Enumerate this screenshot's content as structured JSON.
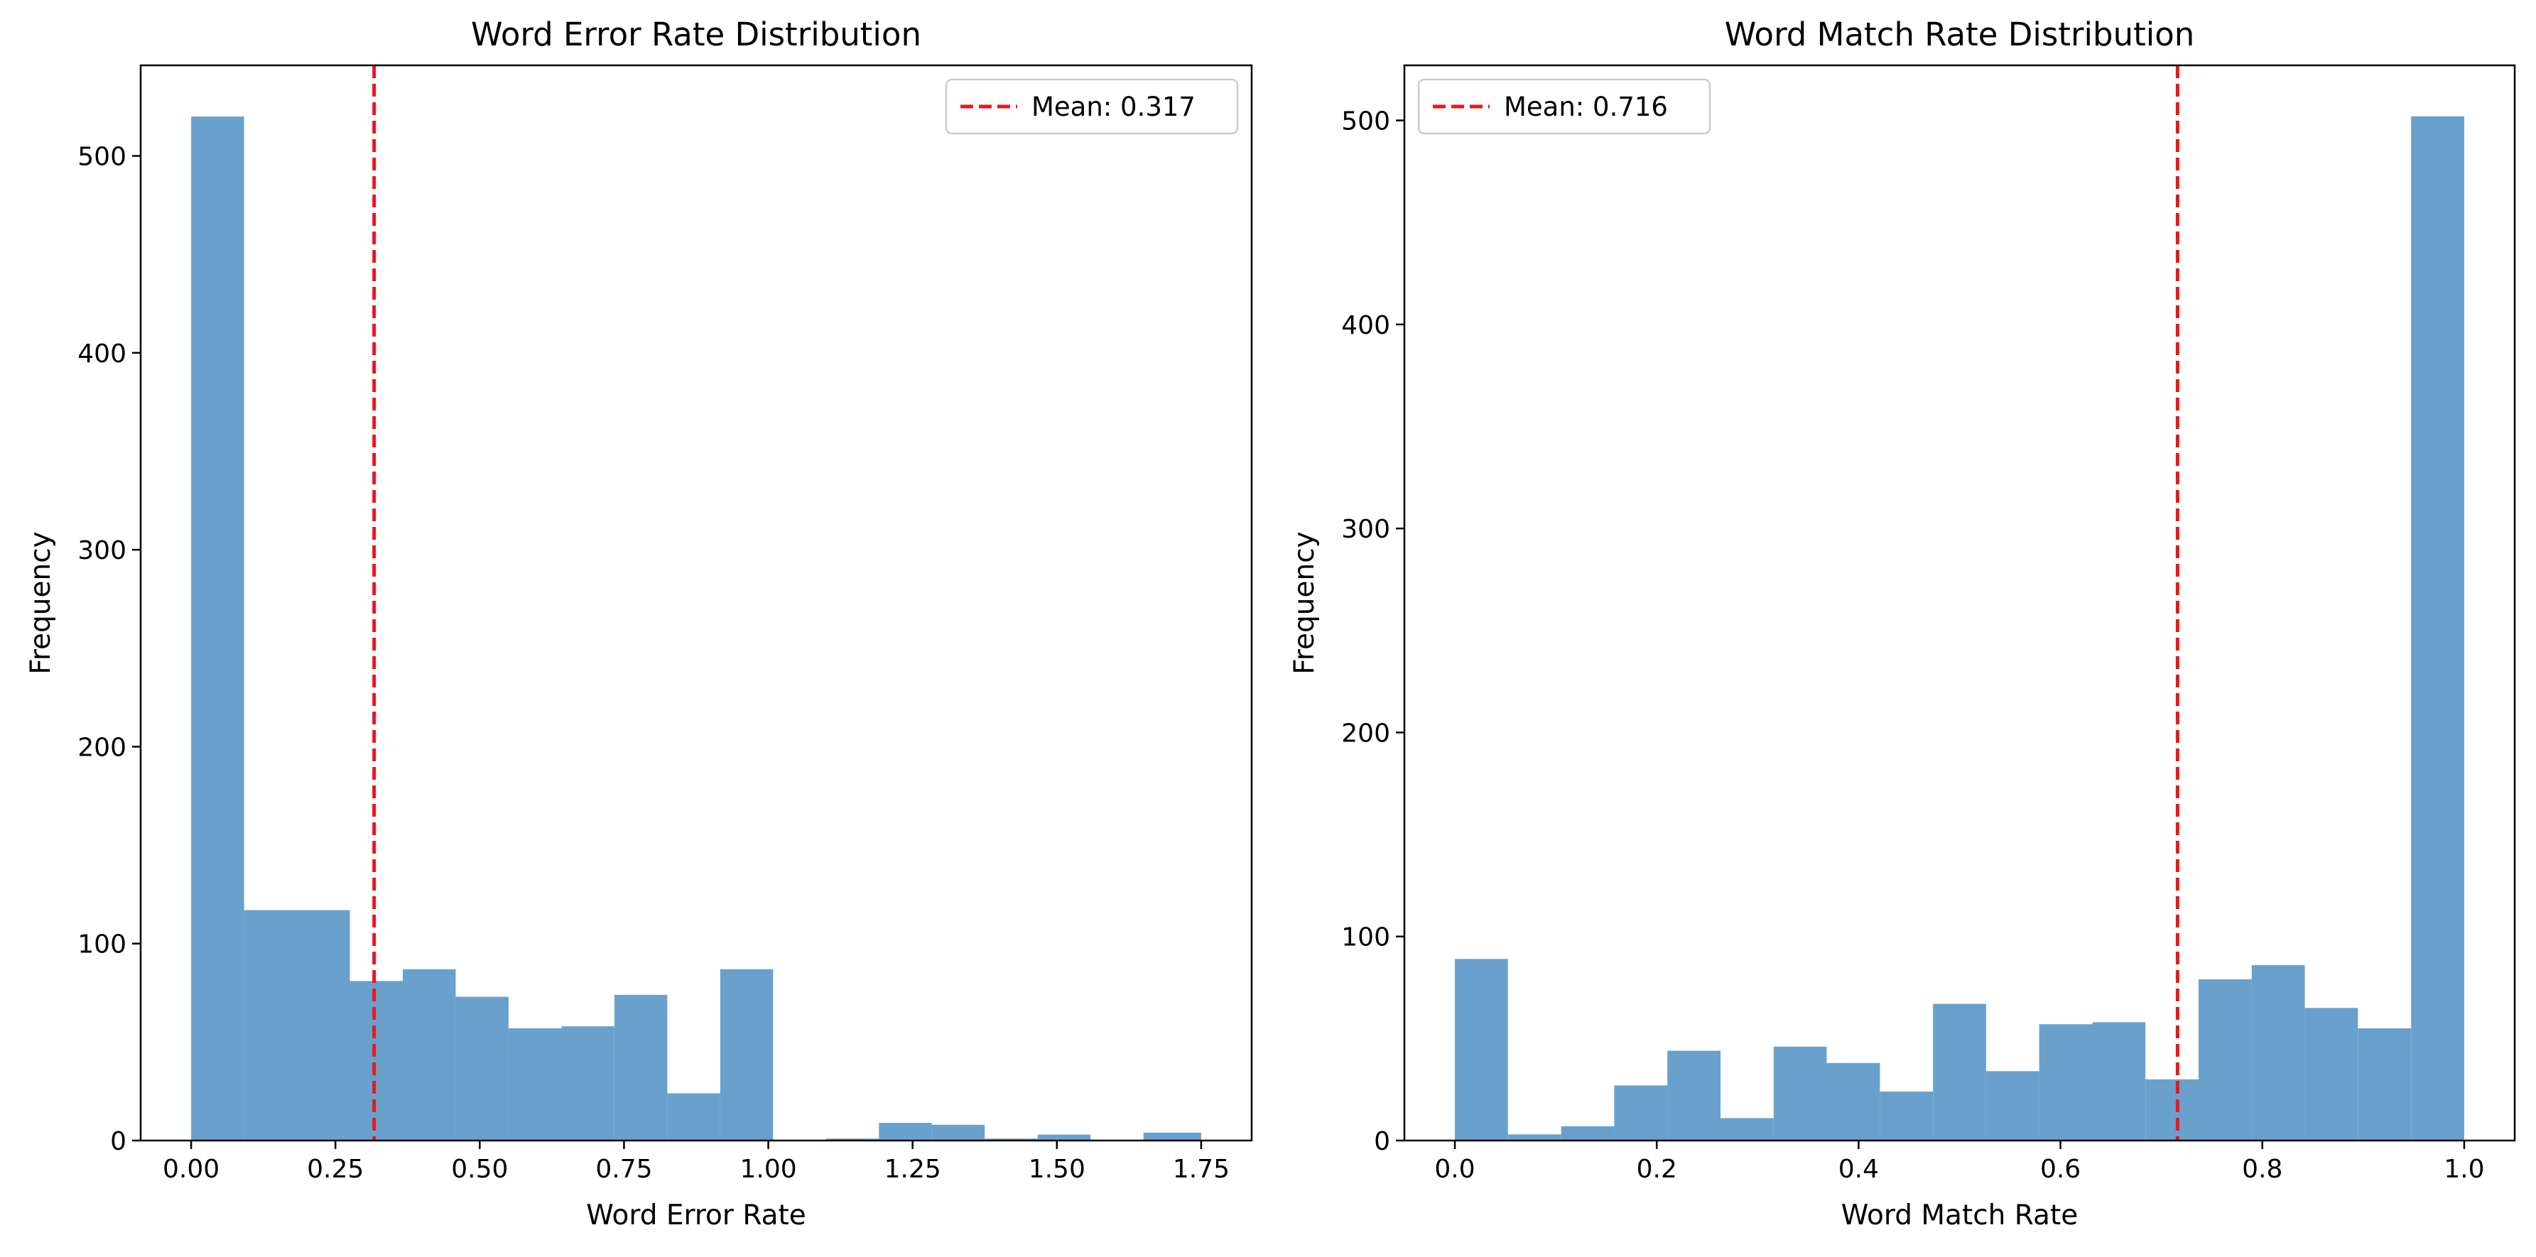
{
  "chart_data": [
    {
      "type": "bar",
      "title": "Word Error Rate Distribution",
      "xlabel": "Word Error Rate",
      "ylabel": "Frequency",
      "xlim": [
        -0.0875,
        1.8375
      ],
      "ylim": [
        0,
        546
      ],
      "xticks": [
        0.0,
        0.25,
        0.5,
        0.75,
        1.0,
        1.25,
        1.5,
        1.75
      ],
      "xtick_labels": [
        "0.00",
        "0.25",
        "0.50",
        "0.75",
        "1.00",
        "1.25",
        "1.50",
        "1.75"
      ],
      "yticks": [
        0,
        100,
        200,
        300,
        400,
        500
      ],
      "ytick_labels": [
        "0",
        "100",
        "200",
        "300",
        "400",
        "500"
      ],
      "bin_edges": [
        0.0,
        0.0917,
        0.1833,
        0.275,
        0.3667,
        0.4583,
        0.55,
        0.6417,
        0.7333,
        0.825,
        0.9167,
        1.0083,
        1.1,
        1.1917,
        1.2833,
        1.375,
        1.4667,
        1.5583,
        1.65,
        1.75
      ],
      "values": [
        520,
        117,
        117,
        81,
        87,
        73,
        57,
        58,
        74,
        24,
        87,
        0,
        1,
        9,
        8,
        1,
        3,
        0,
        4
      ],
      "bar_color": "#6aa1cc",
      "mean": 0.317,
      "mean_color": "#e8181c",
      "legend": {
        "label": "Mean: 0.317",
        "position": "upper right"
      }
    },
    {
      "type": "bar",
      "title": "Word Match Rate Distribution",
      "xlabel": "Word Match Rate",
      "ylabel": "Frequency",
      "xlim": [
        -0.05,
        1.05
      ],
      "ylim": [
        0,
        527
      ],
      "xticks": [
        0.0,
        0.2,
        0.4,
        0.6,
        0.8,
        1.0
      ],
      "xtick_labels": [
        "0.0",
        "0.2",
        "0.4",
        "0.6",
        "0.8",
        "1.0"
      ],
      "yticks": [
        0,
        100,
        200,
        300,
        400,
        500
      ],
      "ytick_labels": [
        "0",
        "100",
        "200",
        "300",
        "400",
        "500"
      ],
      "bin_edges": [
        0.0,
        0.0526,
        0.1053,
        0.1579,
        0.2105,
        0.2632,
        0.3158,
        0.3684,
        0.4211,
        0.4737,
        0.5263,
        0.5789,
        0.6316,
        0.6842,
        0.7368,
        0.7895,
        0.8421,
        0.8947,
        0.9474,
        1.0
      ],
      "values": [
        89,
        3,
        7,
        27,
        44,
        11,
        46,
        38,
        24,
        67,
        34,
        57,
        58,
        30,
        79,
        86,
        65,
        55,
        502
      ],
      "bar_color": "#6aa1cc",
      "mean": 0.716,
      "mean_color": "#e8181c",
      "legend": {
        "label": "Mean: 0.716",
        "position": "upper left"
      }
    }
  ]
}
